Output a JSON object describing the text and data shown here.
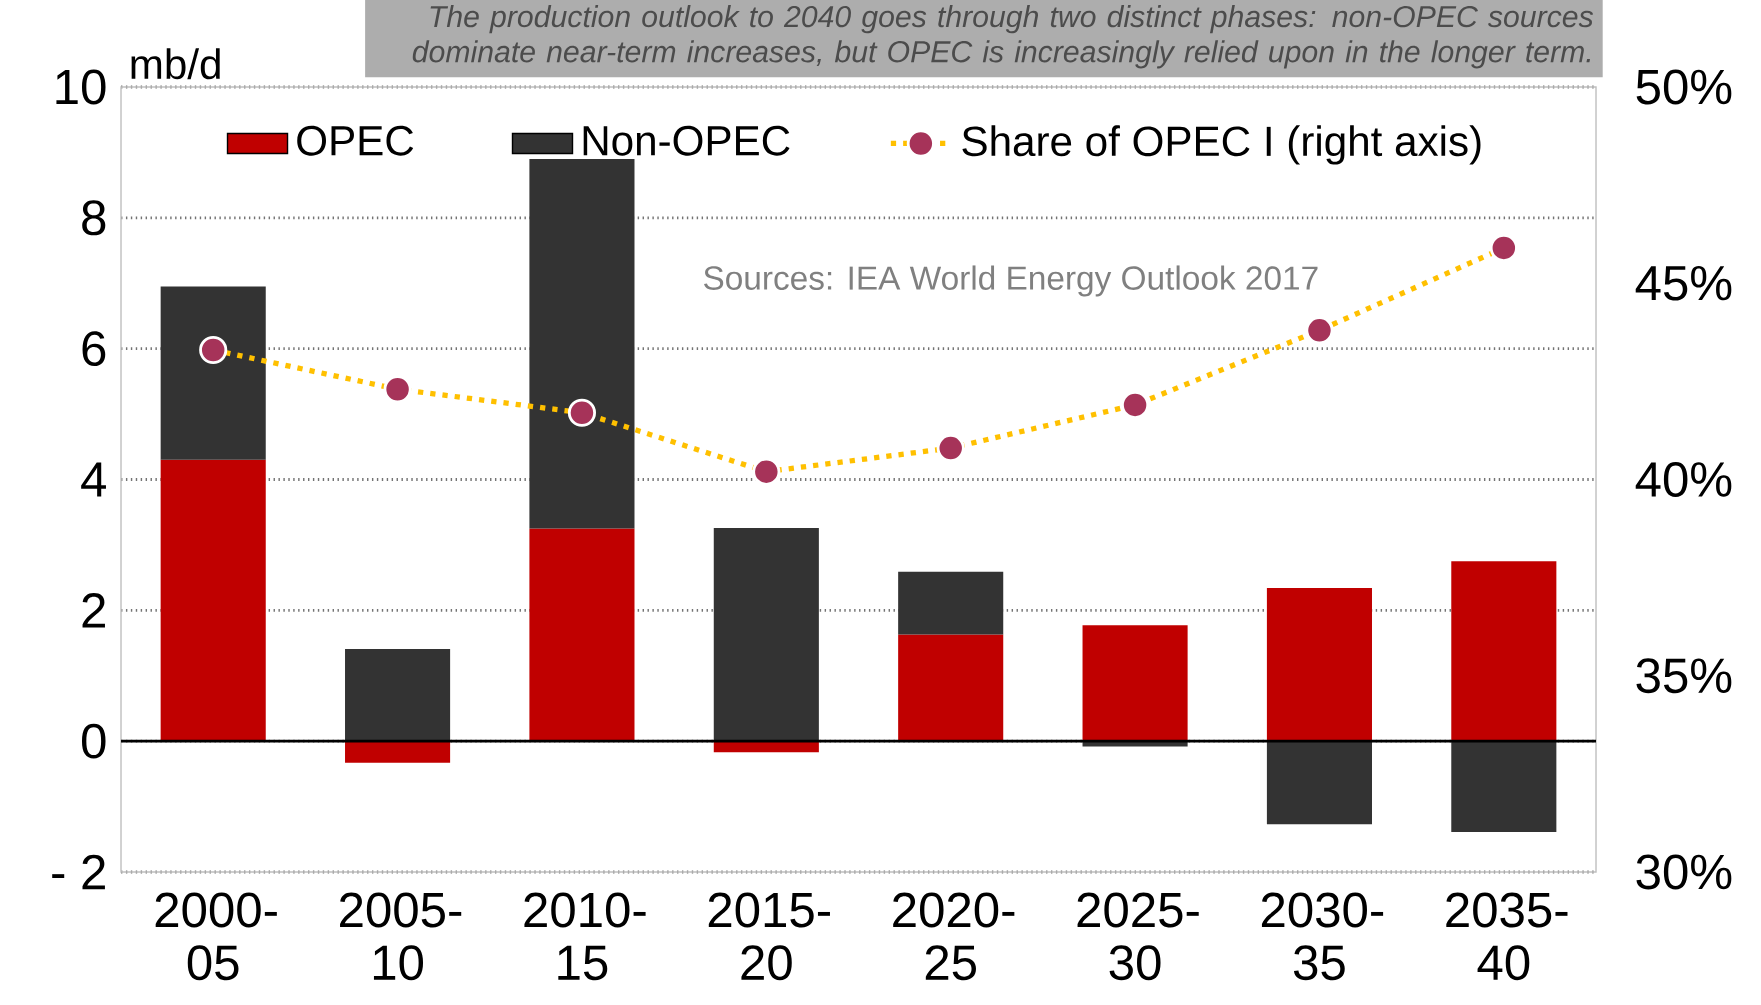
{
  "chart_data": {
    "type": "bar",
    "stacked": true,
    "title": "The production outlook to 2040 goes through two distinct phases: non-OPEC sources dominate near-term increases, but OPEC is increasingly relied upon in the longer term.",
    "ylabel": "mb/d",
    "categories": [
      "2000-05",
      "2005-10",
      "2010-15",
      "2015-20",
      "2020-25",
      "2025-30",
      "2030-35",
      "2035-40"
    ],
    "series": [
      {
        "name": "OPEC",
        "color": "#c00000",
        "values": [
          4.3,
          -0.33,
          3.25,
          -0.17,
          1.63,
          1.77,
          2.34,
          2.75
        ]
      },
      {
        "name": "Non-OPEC",
        "color": "#333333",
        "values": [
          2.65,
          1.41,
          5.65,
          3.26,
          0.96,
          -0.08,
          -1.27,
          -1.39
        ]
      },
      {
        "name": "Share of OPEC I (right axis)",
        "type": "line",
        "axis": "y2",
        "color": "#ffc000",
        "marker": "circle",
        "line_style": "dotted",
        "values": [
          43.3,
          42.3,
          41.7,
          40.2,
          40.8,
          41.9,
          43.8,
          45.9
        ]
      }
    ],
    "ylim": [
      -2,
      10
    ],
    "yticks": [
      {
        "value": -2,
        "label": "- 2"
      },
      0,
      2,
      4,
      6,
      8,
      10
    ],
    "y2lim": [
      30,
      50
    ],
    "y2ticks": [
      {
        "value": 30,
        "label": "30%"
      },
      {
        "value": 35,
        "label": "35%"
      },
      {
        "value": 40,
        "label": "40%"
      },
      {
        "value": 45,
        "label": "45%"
      },
      {
        "value": 50,
        "label": "50%"
      }
    ],
    "grid": "y",
    "legend": "top",
    "annotations": [
      "Sources: IEA World Energy Outlook 2017"
    ]
  }
}
